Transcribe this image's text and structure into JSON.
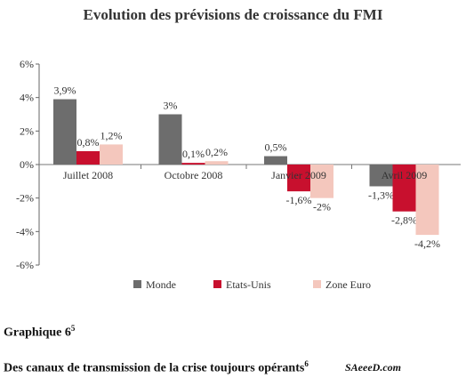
{
  "chart_data": {
    "type": "bar",
    "title": "Evolution des prévisions de croissance du FMI",
    "categories": [
      "Juillet 2008",
      "Octobre 2008",
      "Janvier 2009",
      "Avril 2009"
    ],
    "series": [
      {
        "name": "Monde",
        "values": [
          3.9,
          3.0,
          0.5,
          -1.3
        ],
        "labels": [
          "3,9%",
          "3%",
          "0,5%",
          "-1,3%"
        ],
        "color": "#6d6d6d"
      },
      {
        "name": "Etats-Unis",
        "values": [
          0.8,
          0.1,
          -1.6,
          -2.8
        ],
        "labels": [
          "0,8%",
          "0,1%",
          "-1,6%",
          "-2,8%"
        ],
        "color": "#c8102e"
      },
      {
        "name": "Zone Euro",
        "values": [
          1.2,
          0.2,
          -2.0,
          -4.2
        ],
        "labels": [
          "1,2%",
          "0,2%",
          "-2%",
          "-4,2%"
        ],
        "color": "#f4c7bd"
      }
    ],
    "yticks": [
      "6%",
      "4%",
      "2%",
      "0%",
      "-2%",
      "-4%",
      "-6%"
    ],
    "ylim": [
      -6,
      6
    ],
    "legend_position": "bottom"
  },
  "caption": {
    "graph_label": "Graphique 6",
    "graph_sup": "5",
    "text": "Des canaux de transmission de la crise toujours opérants",
    "text_sup": "6"
  },
  "source": "SAeeeD.com"
}
